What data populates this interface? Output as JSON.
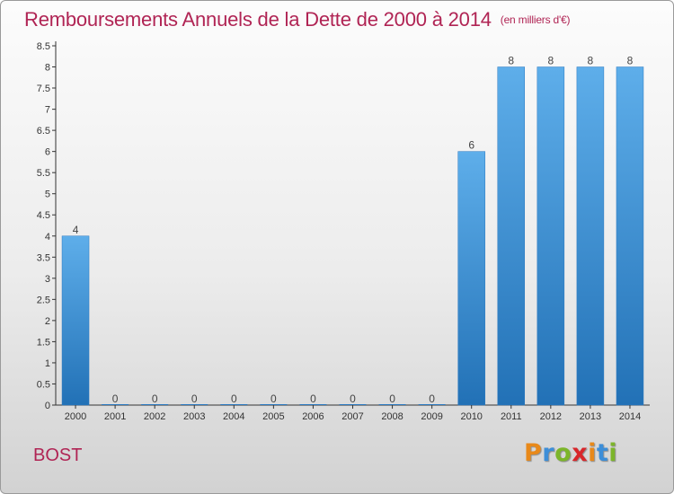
{
  "chart_data": {
    "type": "bar",
    "title": "Remboursements Annuels de la Dette de 2000 à 2014",
    "subtitle": "(en milliers d'€)",
    "categories": [
      "2000",
      "2001",
      "2002",
      "2003",
      "2004",
      "2005",
      "2006",
      "2007",
      "2008",
      "2009",
      "2010",
      "2011",
      "2012",
      "2013",
      "2014"
    ],
    "values": [
      4,
      0,
      0,
      0,
      0,
      0,
      0,
      0,
      0,
      0,
      6,
      8,
      8,
      8,
      8
    ],
    "data_labels": [
      "4",
      "0",
      "0",
      "0",
      "0",
      "0",
      "0",
      "0",
      "0",
      "0",
      "6",
      "8",
      "8",
      "8",
      "8"
    ],
    "yticks": [
      "0",
      "0.5",
      "1",
      "1.5",
      "2",
      "2.5",
      "3",
      "3.5",
      "4",
      "4.5",
      "5",
      "5.5",
      "6",
      "6.5",
      "7",
      "7.5",
      "8",
      "8.5"
    ],
    "ylim": [
      0,
      8.5
    ],
    "xlabel": "",
    "ylabel": "",
    "grid": false,
    "bar_color": "#3a8fd6",
    "title_color": "#b02454"
  },
  "commune_name": "BOST",
  "logo": {
    "letters": [
      "P",
      "r",
      "o",
      "x",
      "i",
      "t",
      "i"
    ],
    "colors": [
      "#e8891a",
      "#3d8ed8",
      "#7cb52a",
      "#d8262a",
      "#e8891a",
      "#3d8ed8",
      "#7cb52a"
    ]
  }
}
